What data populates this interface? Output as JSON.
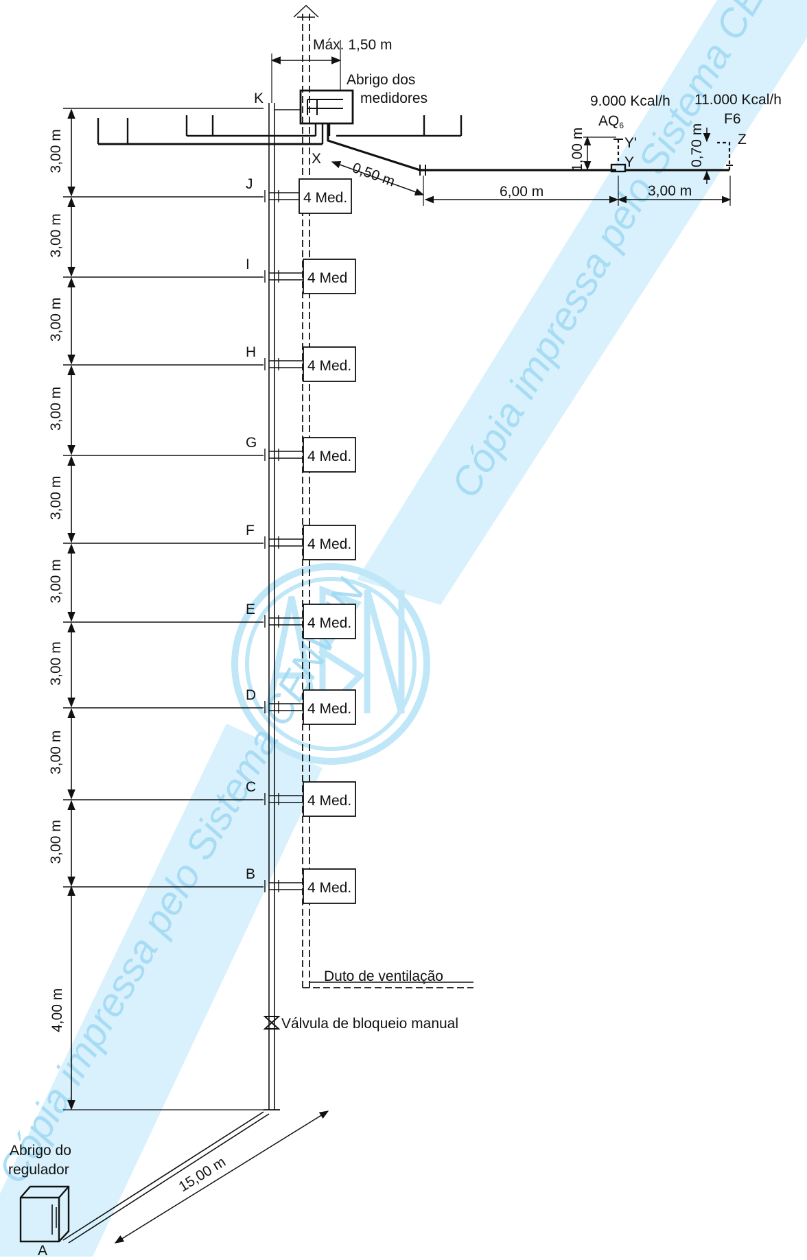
{
  "labels": {
    "max_width": "Máx. 1,50 m",
    "meter_shelter_l1": "Abrigo dos",
    "meter_shelter_l2": "medidores",
    "load_aq": "9.000 Kcal/h",
    "aq_name": "AQ",
    "aq_sub": "6",
    "load_f6": "11.000 Kcal/h",
    "f6_name": "F6",
    "dim_050": "0,50 m",
    "dim_600": "6,00 m",
    "dim_300h": "3,00 m",
    "dim_100": "1,00 m",
    "dim_070": "0,70 m",
    "dim_1500": "15,00 m",
    "dim_400": "4,00 m",
    "vent_duct": "Duto de ventilação",
    "valve": "Válvula de bloqueio manual",
    "reg_shelter_l1": "Abrigo do",
    "reg_shelter_l2": "regulador",
    "point_a": "A",
    "point_k": "K",
    "point_x": "X",
    "point_y": "Y",
    "point_y2": "Y'",
    "point_z": "Z",
    "watermark": "Cópia impressa pelo Sistema CENWIN",
    "logo": "ABNT"
  },
  "floors": [
    {
      "point": "J",
      "meter": "4 Med.",
      "height": "3,00 m"
    },
    {
      "point": "I",
      "meter": "4 Med",
      "height": "3,00 m"
    },
    {
      "point": "H",
      "meter": "4 Med.",
      "height": "3,00 m"
    },
    {
      "point": "G",
      "meter": "4 Med.",
      "height": "3,00 m"
    },
    {
      "point": "F",
      "meter": "4 Med.",
      "height": "3,00 m"
    },
    {
      "point": "E",
      "meter": "4 Med.",
      "height": "3,00 m"
    },
    {
      "point": "D",
      "meter": "4 Med.",
      "height": "3,00 m"
    },
    {
      "point": "C",
      "meter": "4 Med.",
      "height": "3,00 m"
    },
    {
      "point": "B",
      "meter": "4 Med.",
      "height": "3,00 m"
    }
  ],
  "colors": {
    "line": "#111111",
    "watermark": "#9fd9f3"
  }
}
